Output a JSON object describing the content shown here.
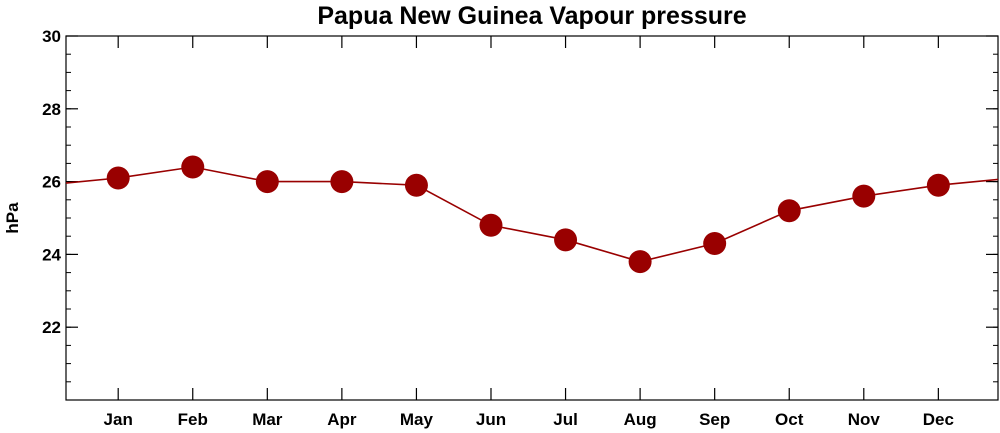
{
  "chart_data": {
    "type": "line",
    "title": "Papua New Guinea Vapour pressure",
    "xlabel": "",
    "ylabel": "hPa",
    "categories": [
      "Jan",
      "Feb",
      "Mar",
      "Apr",
      "May",
      "Jun",
      "Jul",
      "Aug",
      "Sep",
      "Oct",
      "Nov",
      "Dec"
    ],
    "values": [
      26.1,
      26.4,
      26.0,
      26.0,
      25.9,
      24.8,
      24.4,
      23.8,
      24.3,
      25.2,
      25.6,
      25.9
    ],
    "ylim": [
      20,
      30
    ],
    "yticks": [
      22,
      24,
      26,
      28,
      30
    ],
    "grid": false,
    "line_color": "#990000",
    "marker_color": "#990000"
  }
}
